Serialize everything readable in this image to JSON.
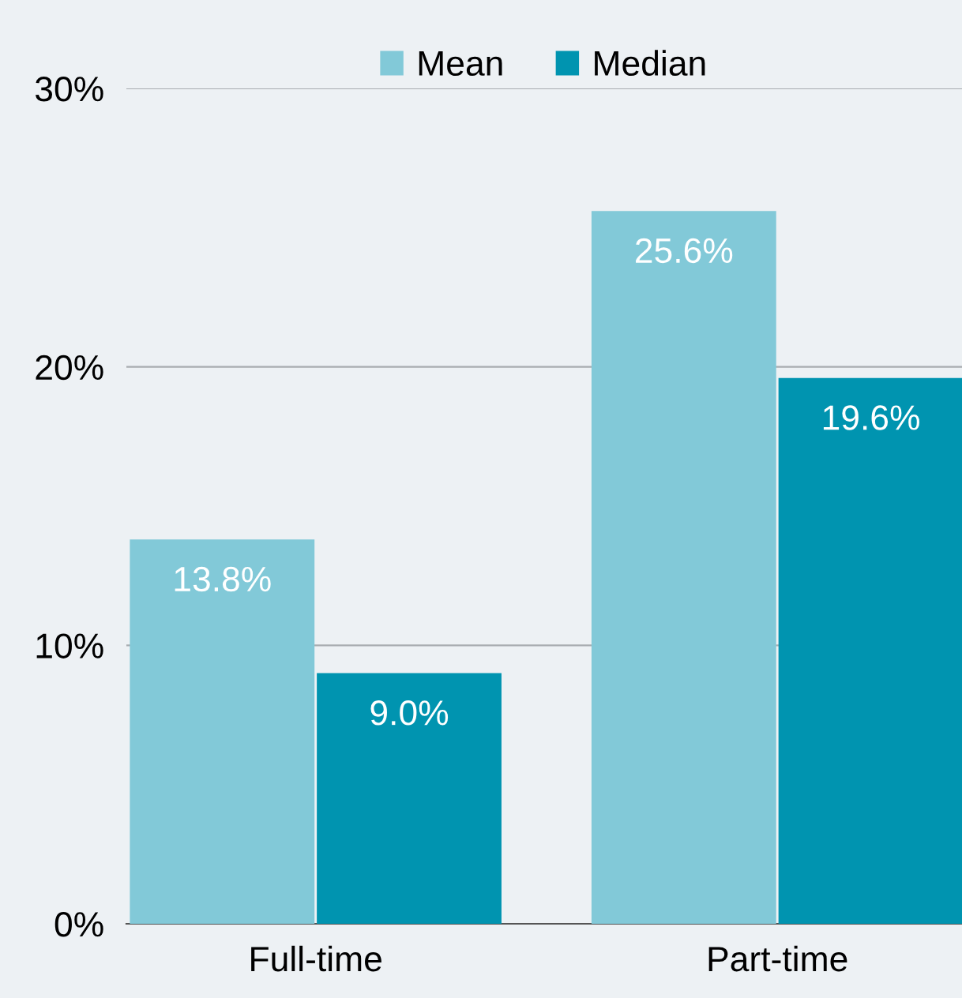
{
  "chart_data": {
    "type": "bar",
    "categories": [
      "Full-time",
      "Part-time"
    ],
    "series": [
      {
        "name": "Mean",
        "color": "#82c9d8",
        "values": [
          13.8,
          25.6
        ],
        "value_labels": [
          "13.8%",
          "25.6%"
        ]
      },
      {
        "name": "Median",
        "color": "#0094b0",
        "values": [
          9.0,
          19.6
        ],
        "value_labels": [
          "9.0%",
          "19.6%"
        ]
      }
    ],
    "ylim": [
      0,
      30
    ],
    "yticks": [
      {
        "value": 0,
        "label": "0%"
      },
      {
        "value": 10,
        "label": "10%"
      },
      {
        "value": 20,
        "label": "20%"
      },
      {
        "value": 30,
        "label": "30%"
      }
    ],
    "grid": "y",
    "legend": "top"
  }
}
